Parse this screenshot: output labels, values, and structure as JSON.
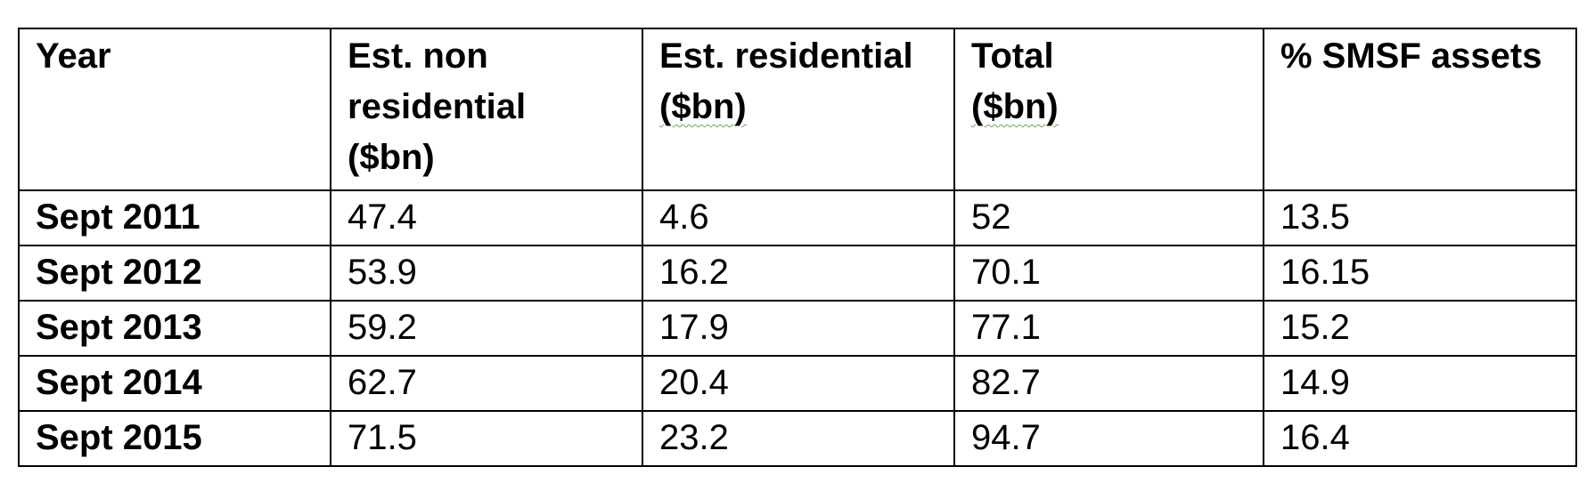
{
  "table": {
    "headers": [
      {
        "line1": "Year",
        "line2": "",
        "line3": ""
      },
      {
        "line1": "Est. non",
        "line2": "residential",
        "line3": "($bn)"
      },
      {
        "line1": "Est. residential",
        "line2": "($bn)",
        "line3": ""
      },
      {
        "line1": "Total",
        "line2": "($bn)",
        "line3": ""
      },
      {
        "line1": "% SMSF assets",
        "line2": "",
        "line3": ""
      }
    ],
    "rows": [
      {
        "year": "Sept 2011",
        "non_residential": "47.4",
        "residential": "4.6",
        "total": "52",
        "smsf_pct": "13.5"
      },
      {
        "year": "Sept 2012",
        "non_residential": "53.9",
        "residential": "16.2",
        "total": "70.1",
        "smsf_pct": "16.15"
      },
      {
        "year": "Sept 2013",
        "non_residential": "59.2",
        "residential": "17.9",
        "total": "77.1",
        "smsf_pct": "15.2"
      },
      {
        "year": "Sept 2014",
        "non_residential": "62.7",
        "residential": "20.4",
        "total": "82.7",
        "smsf_pct": "14.9"
      },
      {
        "year": "Sept 2015",
        "non_residential": "71.5",
        "residential": "23.2",
        "total": "94.7",
        "smsf_pct": "16.4"
      }
    ]
  }
}
